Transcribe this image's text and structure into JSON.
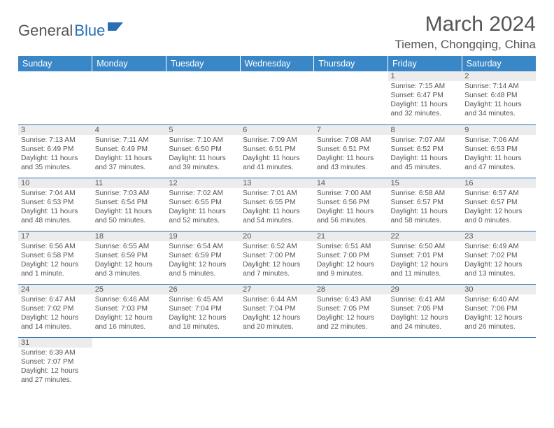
{
  "logo": {
    "text1": "General",
    "text2": "Blue",
    "flag_color": "#2a6fb5"
  },
  "title": "March 2024",
  "location": "Tiemen, Chongqing, China",
  "colors": {
    "header_bg": "#3a87c8",
    "header_text": "#ffffff",
    "day_bg": "#ececec",
    "border": "#2a6fb5",
    "text": "#555555",
    "page_bg": "#ffffff"
  },
  "weekdays": [
    "Sunday",
    "Monday",
    "Tuesday",
    "Wednesday",
    "Thursday",
    "Friday",
    "Saturday"
  ],
  "weeks": [
    [
      null,
      null,
      null,
      null,
      null,
      {
        "n": "1",
        "sr": "7:15 AM",
        "ss": "6:47 PM",
        "dl": "11 hours and 32 minutes."
      },
      {
        "n": "2",
        "sr": "7:14 AM",
        "ss": "6:48 PM",
        "dl": "11 hours and 34 minutes."
      }
    ],
    [
      {
        "n": "3",
        "sr": "7:13 AM",
        "ss": "6:49 PM",
        "dl": "11 hours and 35 minutes."
      },
      {
        "n": "4",
        "sr": "7:11 AM",
        "ss": "6:49 PM",
        "dl": "11 hours and 37 minutes."
      },
      {
        "n": "5",
        "sr": "7:10 AM",
        "ss": "6:50 PM",
        "dl": "11 hours and 39 minutes."
      },
      {
        "n": "6",
        "sr": "7:09 AM",
        "ss": "6:51 PM",
        "dl": "11 hours and 41 minutes."
      },
      {
        "n": "7",
        "sr": "7:08 AM",
        "ss": "6:51 PM",
        "dl": "11 hours and 43 minutes."
      },
      {
        "n": "8",
        "sr": "7:07 AM",
        "ss": "6:52 PM",
        "dl": "11 hours and 45 minutes."
      },
      {
        "n": "9",
        "sr": "7:06 AM",
        "ss": "6:53 PM",
        "dl": "11 hours and 47 minutes."
      }
    ],
    [
      {
        "n": "10",
        "sr": "7:04 AM",
        "ss": "6:53 PM",
        "dl": "11 hours and 48 minutes."
      },
      {
        "n": "11",
        "sr": "7:03 AM",
        "ss": "6:54 PM",
        "dl": "11 hours and 50 minutes."
      },
      {
        "n": "12",
        "sr": "7:02 AM",
        "ss": "6:55 PM",
        "dl": "11 hours and 52 minutes."
      },
      {
        "n": "13",
        "sr": "7:01 AM",
        "ss": "6:55 PM",
        "dl": "11 hours and 54 minutes."
      },
      {
        "n": "14",
        "sr": "7:00 AM",
        "ss": "6:56 PM",
        "dl": "11 hours and 56 minutes."
      },
      {
        "n": "15",
        "sr": "6:58 AM",
        "ss": "6:57 PM",
        "dl": "11 hours and 58 minutes."
      },
      {
        "n": "16",
        "sr": "6:57 AM",
        "ss": "6:57 PM",
        "dl": "12 hours and 0 minutes."
      }
    ],
    [
      {
        "n": "17",
        "sr": "6:56 AM",
        "ss": "6:58 PM",
        "dl": "12 hours and 1 minute."
      },
      {
        "n": "18",
        "sr": "6:55 AM",
        "ss": "6:59 PM",
        "dl": "12 hours and 3 minutes."
      },
      {
        "n": "19",
        "sr": "6:54 AM",
        "ss": "6:59 PM",
        "dl": "12 hours and 5 minutes."
      },
      {
        "n": "20",
        "sr": "6:52 AM",
        "ss": "7:00 PM",
        "dl": "12 hours and 7 minutes."
      },
      {
        "n": "21",
        "sr": "6:51 AM",
        "ss": "7:00 PM",
        "dl": "12 hours and 9 minutes."
      },
      {
        "n": "22",
        "sr": "6:50 AM",
        "ss": "7:01 PM",
        "dl": "12 hours and 11 minutes."
      },
      {
        "n": "23",
        "sr": "6:49 AM",
        "ss": "7:02 PM",
        "dl": "12 hours and 13 minutes."
      }
    ],
    [
      {
        "n": "24",
        "sr": "6:47 AM",
        "ss": "7:02 PM",
        "dl": "12 hours and 14 minutes."
      },
      {
        "n": "25",
        "sr": "6:46 AM",
        "ss": "7:03 PM",
        "dl": "12 hours and 16 minutes."
      },
      {
        "n": "26",
        "sr": "6:45 AM",
        "ss": "7:04 PM",
        "dl": "12 hours and 18 minutes."
      },
      {
        "n": "27",
        "sr": "6:44 AM",
        "ss": "7:04 PM",
        "dl": "12 hours and 20 minutes."
      },
      {
        "n": "28",
        "sr": "6:43 AM",
        "ss": "7:05 PM",
        "dl": "12 hours and 22 minutes."
      },
      {
        "n": "29",
        "sr": "6:41 AM",
        "ss": "7:05 PM",
        "dl": "12 hours and 24 minutes."
      },
      {
        "n": "30",
        "sr": "6:40 AM",
        "ss": "7:06 PM",
        "dl": "12 hours and 26 minutes."
      }
    ],
    [
      {
        "n": "31",
        "sr": "6:39 AM",
        "ss": "7:07 PM",
        "dl": "12 hours and 27 minutes."
      },
      null,
      null,
      null,
      null,
      null,
      null
    ]
  ],
  "labels": {
    "sunrise": "Sunrise: ",
    "sunset": "Sunset: ",
    "daylight": "Daylight: "
  }
}
